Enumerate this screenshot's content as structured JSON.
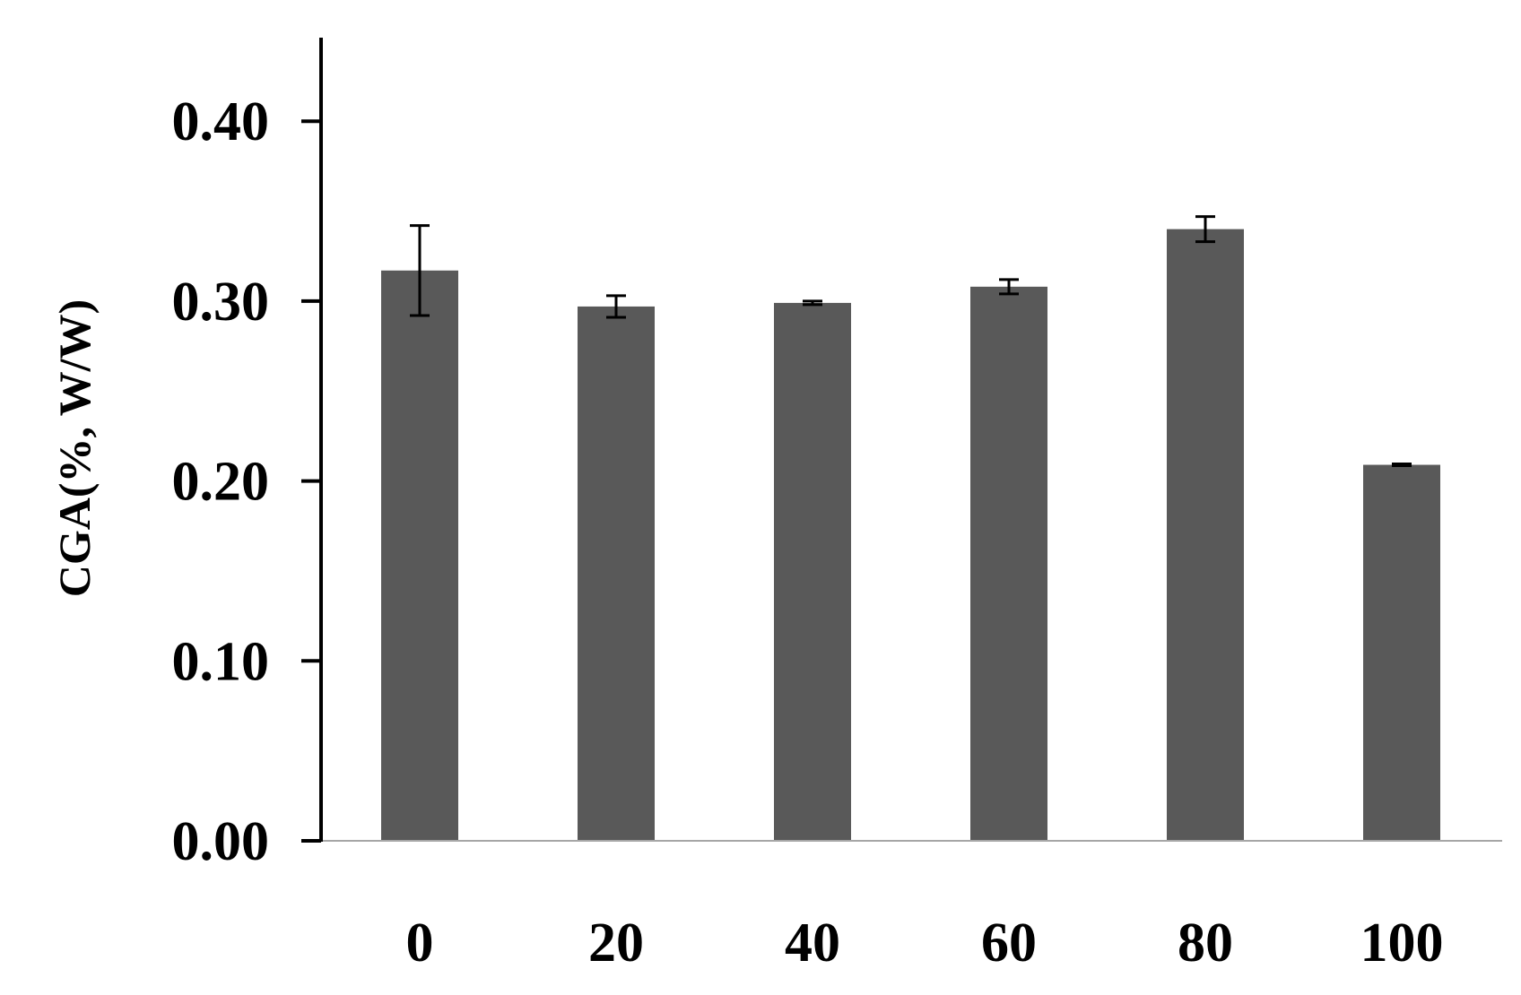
{
  "chart_data": {
    "type": "bar",
    "title": "",
    "xlabel": "",
    "ylabel": "CGA(%, W/W)",
    "categories": [
      "0",
      "20",
      "40",
      "60",
      "80",
      "100"
    ],
    "values": [
      0.317,
      0.297,
      0.299,
      0.308,
      0.34,
      0.209
    ],
    "error": [
      0.025,
      0.006,
      0.001,
      0.004,
      0.007,
      0.0005
    ],
    "ylim": [
      0,
      0.45
    ],
    "yticks": [
      0.0,
      0.1,
      0.2,
      0.3,
      0.4
    ],
    "ytick_labels": [
      "0.00",
      "0.10",
      "0.20",
      "0.30",
      "0.40"
    ],
    "grid": false,
    "legend": "none",
    "colors": {
      "bar": "#595959",
      "axis": "#000000",
      "baseline": "#a6a6a6",
      "error_bar": "#000000"
    }
  }
}
